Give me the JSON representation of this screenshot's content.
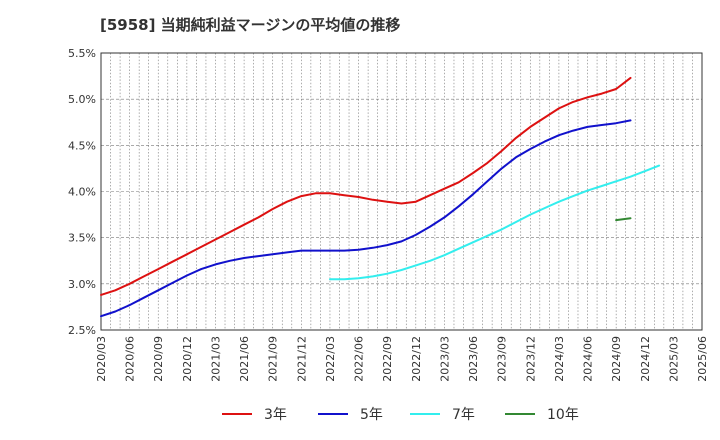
{
  "chart_data": {
    "type": "line",
    "title": "[5958]  当期純利益マージンの平均値の推移",
    "xlabel": "",
    "ylabel": "",
    "ylim": [
      2.5,
      5.5
    ],
    "y_ticks": [
      "2.5%",
      "3.0%",
      "3.5%",
      "4.0%",
      "4.5%",
      "5.0%",
      "5.5%"
    ],
    "y_tick_values": [
      2.5,
      3.0,
      3.5,
      4.0,
      4.5,
      5.0,
      5.5
    ],
    "x_ticks": [
      "2020/03",
      "2020/06",
      "2020/09",
      "2020/12",
      "2021/03",
      "2021/06",
      "2021/09",
      "2021/12",
      "2022/03",
      "2022/06",
      "2022/09",
      "2022/12",
      "2023/03",
      "2023/06",
      "2023/09",
      "2023/12",
      "2024/03",
      "2024/06",
      "2024/09",
      "2024/12",
      "2025/03",
      "2025/06"
    ],
    "grid": true,
    "legend_position": "bottom",
    "series": [
      {
        "name": "3年",
        "color": "#dd1111",
        "start_index": 0,
        "values": [
          2.88,
          2.93,
          3.0,
          3.08,
          3.16,
          3.24,
          3.32,
          3.4,
          3.48,
          3.56,
          3.64,
          3.72,
          3.81,
          3.89,
          3.95,
          3.98,
          3.98,
          3.96,
          3.94,
          3.91,
          3.89,
          3.87,
          3.89,
          3.96,
          4.03,
          4.1,
          4.2,
          4.31,
          4.44,
          4.58,
          4.7,
          4.8,
          4.9,
          4.97,
          5.02,
          5.06,
          5.11,
          5.23
        ]
      },
      {
        "name": "5年",
        "color": "#1111cc",
        "start_index": 0,
        "values": [
          2.65,
          2.7,
          2.77,
          2.85,
          2.93,
          3.01,
          3.09,
          3.16,
          3.21,
          3.25,
          3.28,
          3.3,
          3.32,
          3.34,
          3.36,
          3.36,
          3.36,
          3.36,
          3.37,
          3.39,
          3.42,
          3.46,
          3.53,
          3.62,
          3.72,
          3.84,
          3.97,
          4.11,
          4.25,
          4.37,
          4.46,
          4.54,
          4.61,
          4.66,
          4.7,
          4.72,
          4.74,
          4.77
        ]
      },
      {
        "name": "7年",
        "color": "#33eeee",
        "start_index": 16,
        "values": [
          3.05,
          3.05,
          3.06,
          3.08,
          3.11,
          3.15,
          3.2,
          3.25,
          3.31,
          3.38,
          3.45,
          3.52,
          3.59,
          3.67,
          3.75,
          3.82,
          3.89,
          3.95,
          4.01,
          4.06,
          4.11,
          4.16,
          4.22,
          4.28
        ]
      },
      {
        "name": "10年",
        "color": "#338833",
        "start_index": 36,
        "values": [
          3.69,
          3.71
        ]
      }
    ]
  }
}
